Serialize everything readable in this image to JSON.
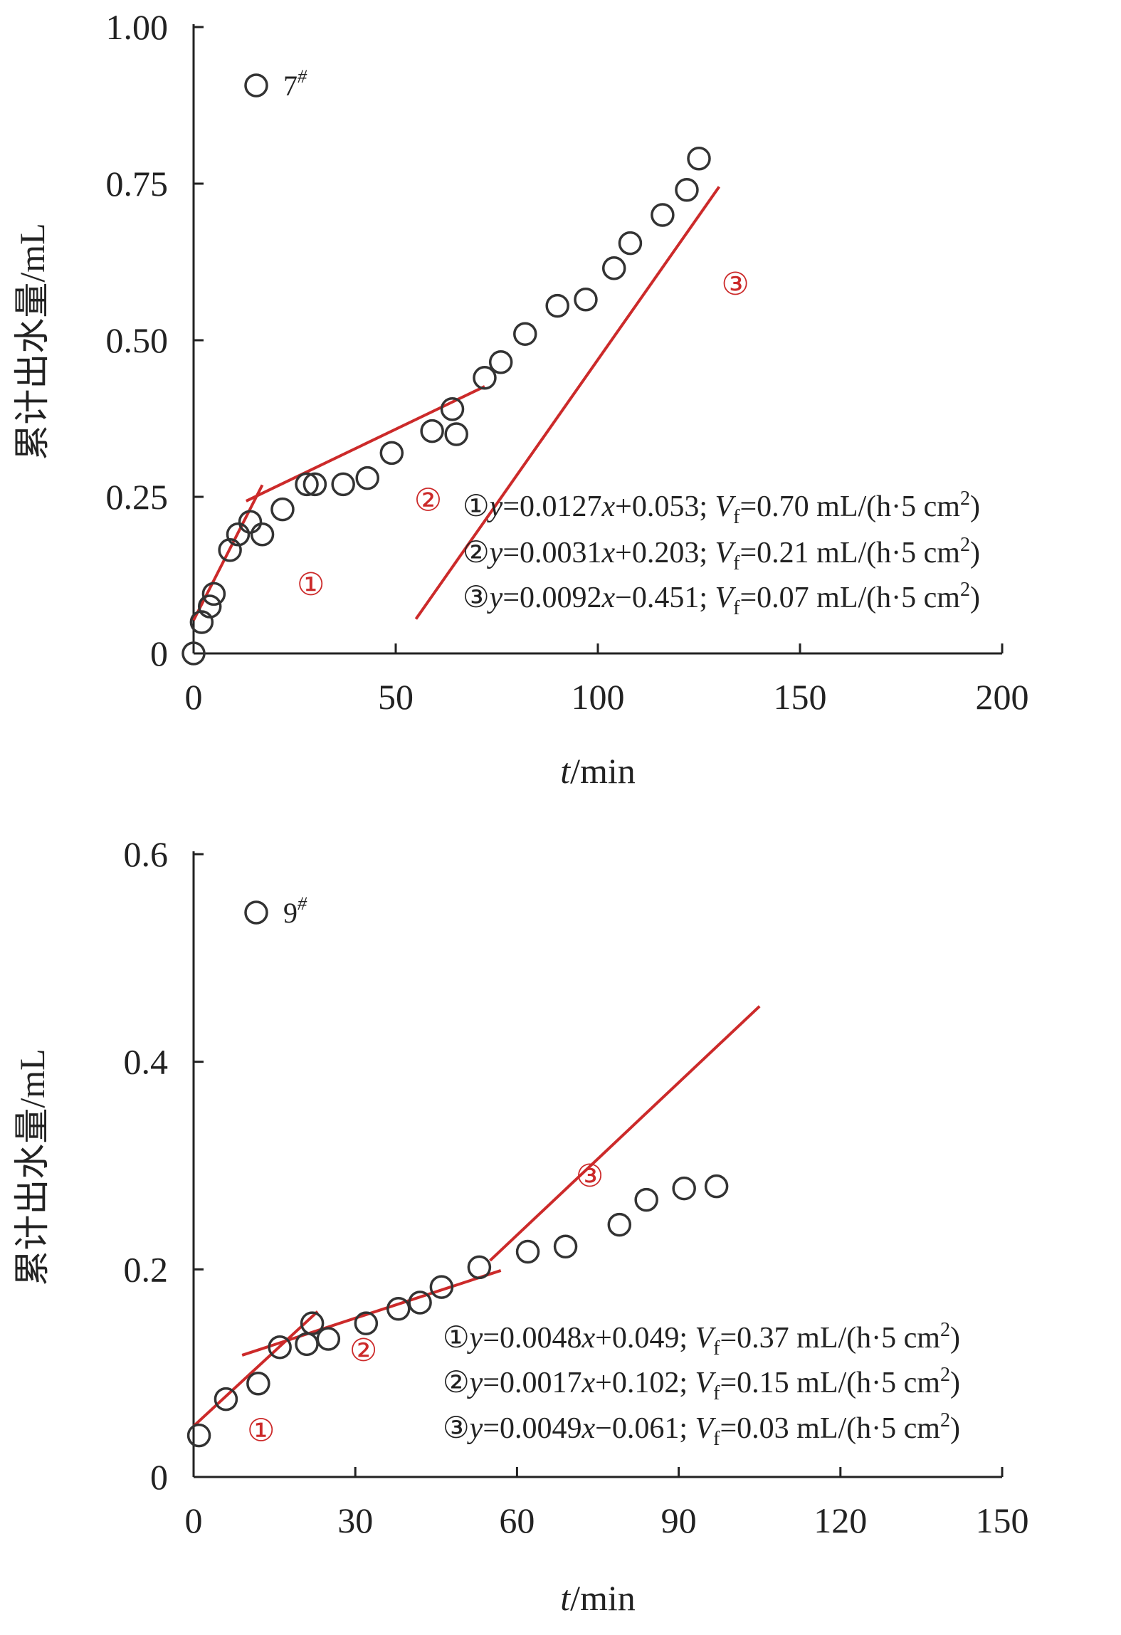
{
  "chart_data": [
    {
      "type": "scatter",
      "sample_label": "7",
      "sample_sup": "#",
      "xlabel_var": "t",
      "xlabel_unit": "/min",
      "ylabel": "累计出水量/mL",
      "xlim": [
        0,
        200
      ],
      "ylim": [
        0,
        1.0
      ],
      "xticks": [
        0,
        50,
        100,
        150,
        200
      ],
      "yticks": [
        0,
        0.25,
        0.5,
        0.75,
        1.0
      ],
      "xtick_labels": [
        "0",
        "50",
        "100",
        "150",
        "200"
      ],
      "ytick_labels": [
        "0",
        "0.25",
        "0.50",
        "0.75",
        "1.00"
      ],
      "marker": "open-circle",
      "marker_color": "#333333",
      "line_color": "#cc2a2a",
      "points": [
        [
          0,
          0.0
        ],
        [
          2,
          0.05
        ],
        [
          4,
          0.075
        ],
        [
          5,
          0.095
        ],
        [
          9,
          0.165
        ],
        [
          11,
          0.19
        ],
        [
          14,
          0.21
        ],
        [
          17,
          0.19
        ],
        [
          22,
          0.23
        ],
        [
          28,
          0.27
        ],
        [
          30,
          0.27
        ],
        [
          37,
          0.27
        ],
        [
          43,
          0.28
        ],
        [
          49,
          0.32
        ],
        [
          59,
          0.355
        ],
        [
          64,
          0.39
        ],
        [
          65,
          0.35
        ],
        [
          72,
          0.44
        ],
        [
          76,
          0.465
        ],
        [
          82,
          0.51
        ],
        [
          90,
          0.555
        ],
        [
          97,
          0.565
        ],
        [
          104,
          0.615
        ],
        [
          108,
          0.655
        ],
        [
          116,
          0.7
        ],
        [
          122,
          0.74
        ],
        [
          125,
          0.79
        ]
      ],
      "fits": [
        {
          "mark": "①",
          "slope": 0.0127,
          "intercept": 0.053,
          "equation": "y=0.0127x+0.053",
          "x_range": [
            0,
            17
          ],
          "Vf": "0.70",
          "label_at": [
            29,
            0.11
          ]
        },
        {
          "mark": "②",
          "slope": 0.0031,
          "intercept": 0.203,
          "equation": "y=0.0031x+0.203",
          "x_range": [
            13,
            72
          ],
          "Vf": "0.21",
          "label_at": [
            58,
            0.245
          ]
        },
        {
          "mark": "③",
          "slope": 0.0092,
          "intercept": -0.451,
          "equation": "y=0.0092x−0.451",
          "x_range": [
            55,
            130
          ],
          "Vf": "0.07",
          "label_at": [
            134,
            0.59
          ]
        }
      ],
      "equations": [
        {
          "mark": "①",
          "y": "y",
          "eq": "=0.0127",
          "x": "x",
          "rest": "+0.053; ",
          "V": "V",
          "sub": "f",
          "val": "=0.70 mL/(h·5 cm",
          "sup": "2",
          "close": ")"
        },
        {
          "mark": "②",
          "y": "y",
          "eq": "=0.0031",
          "x": "x",
          "rest": "+0.203; ",
          "V": "V",
          "sub": "f",
          "val": "=0.21 mL/(h·5 cm",
          "sup": "2",
          "close": ")"
        },
        {
          "mark": "③",
          "y": "y",
          "eq": "=0.0092",
          "x": "x",
          "rest": "−0.451; ",
          "V": "V",
          "sub": "f",
          "val": "=0.07 mL/(h·5 cm",
          "sup": "2",
          "close": ")"
        }
      ]
    },
    {
      "type": "scatter",
      "sample_label": "9",
      "sample_sup": "#",
      "xlabel_var": "t",
      "xlabel_unit": "/min",
      "ylabel": "累计出水量/mL",
      "xlim": [
        0,
        150
      ],
      "ylim": [
        0,
        0.6
      ],
      "xticks": [
        0,
        30,
        60,
        90,
        120,
        150
      ],
      "yticks": [
        0,
        0.2,
        0.4,
        0.6
      ],
      "xtick_labels": [
        "0",
        "30",
        "60",
        "90",
        "120",
        "150"
      ],
      "ytick_labels": [
        "0",
        "0.2",
        "0.4",
        "0.6"
      ],
      "marker": "open-circle",
      "marker_color": "#333333",
      "line_color": "#cc2a2a",
      "points": [
        [
          1,
          0.04
        ],
        [
          6,
          0.075
        ],
        [
          12,
          0.09
        ],
        [
          16,
          0.125
        ],
        [
          21,
          0.128
        ],
        [
          22,
          0.148
        ],
        [
          25,
          0.133
        ],
        [
          32,
          0.148
        ],
        [
          38,
          0.162
        ],
        [
          42,
          0.168
        ],
        [
          46,
          0.183
        ],
        [
          53,
          0.202
        ],
        [
          62,
          0.217
        ],
        [
          69,
          0.222
        ],
        [
          79,
          0.243
        ],
        [
          84,
          0.267
        ],
        [
          91,
          0.278
        ],
        [
          97,
          0.28
        ]
      ],
      "fits": [
        {
          "mark": "①",
          "slope": 0.0048,
          "intercept": 0.049,
          "equation": "y=0.0048x+0.049",
          "x_range": [
            0,
            23
          ],
          "Vf": "0.37",
          "label_at": [
            12.5,
            0.045
          ]
        },
        {
          "mark": "②",
          "slope": 0.0017,
          "intercept": 0.102,
          "equation": "y=0.0017x+0.102",
          "x_range": [
            9,
            57
          ],
          "Vf": "0.15",
          "label_at": [
            31.5,
            0.122
          ]
        },
        {
          "mark": "③",
          "slope": 0.0049,
          "intercept": -0.061,
          "equation": "y=0.0049x−0.061",
          "x_range": [
            55,
            105
          ],
          "Vf": "0.03",
          "label_at": [
            73.5,
            0.29
          ]
        }
      ],
      "equations": [
        {
          "mark": "①",
          "y": "y",
          "eq": "=0.0048",
          "x": "x",
          "rest": "+0.049; ",
          "V": "V",
          "sub": "f",
          "val": "=0.37 mL/(h·5 cm",
          "sup": "2",
          "close": ")"
        },
        {
          "mark": "②",
          "y": "y",
          "eq": "=0.0017",
          "x": "x",
          "rest": "+0.102; ",
          "V": "V",
          "sub": "f",
          "val": "=0.15 mL/(h·5 cm",
          "sup": "2",
          "close": ")"
        },
        {
          "mark": "③",
          "y": "y",
          "eq": "=0.0049",
          "x": "x",
          "rest": "−0.061; ",
          "V": "V",
          "sub": "f",
          "val": "=0.03 mL/(h·5 cm",
          "sup": "2",
          "close": ")"
        }
      ]
    }
  ]
}
